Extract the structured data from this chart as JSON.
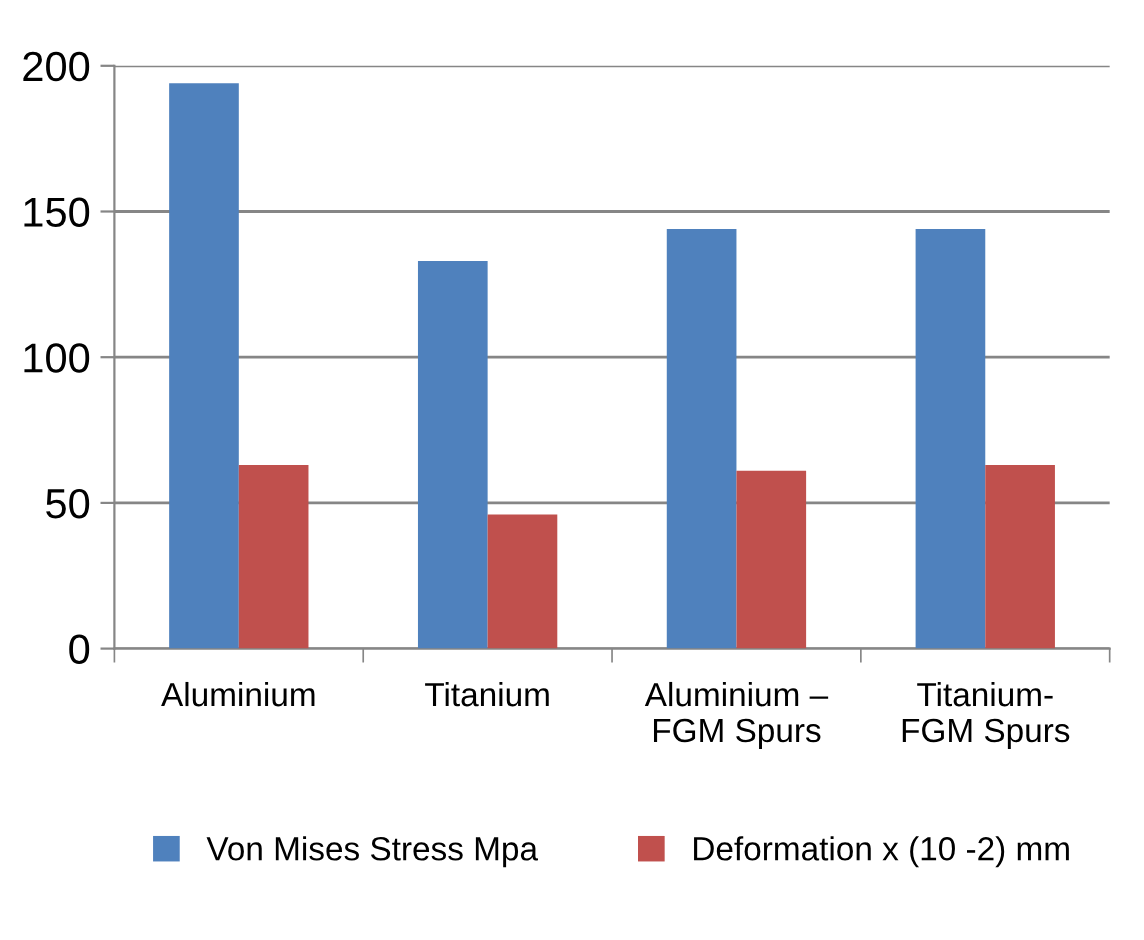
{
  "chart_data": {
    "type": "bar",
    "categories": [
      "Aluminium",
      "Titanium",
      "Aluminium –\nFGM Spurs",
      "Titanium-\nFGM Spurs"
    ],
    "series": [
      {
        "name": "Von Mises Stress Mpa",
        "color": "#4f81bd",
        "values": [
          194,
          133,
          144,
          144
        ]
      },
      {
        "name": "Deformation x (10 -2) mm",
        "color": "#c0504d",
        "values": [
          63,
          46,
          61,
          63
        ]
      }
    ],
    "ylim": [
      0,
      200
    ],
    "yticks": [
      0,
      50,
      100,
      150,
      200
    ],
    "grid": "y",
    "legend": "bottom"
  }
}
